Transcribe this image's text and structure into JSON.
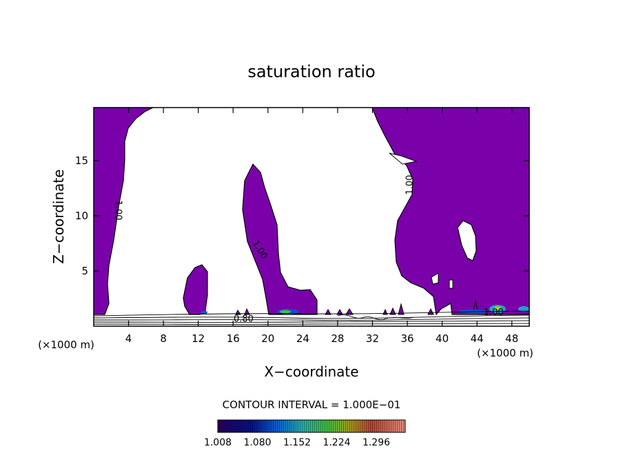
{
  "chart_data": {
    "type": "heatmap",
    "title": "saturation ratio",
    "xlabel": "X−coordinate",
    "ylabel": "Z−coordinate",
    "x_units": "(×1000 m)",
    "z_units": "(×1000 m)",
    "xlim": [
      0,
      50
    ],
    "ylim": [
      0,
      19.8
    ],
    "x_ticks": [
      4,
      8,
      12,
      16,
      20,
      24,
      28,
      32,
      36,
      40,
      44,
      48
    ],
    "y_ticks": [
      5,
      10,
      15
    ],
    "contour_interval_label": "CONTOUR INTERVAL = 1.000E−01",
    "contour_labels": [
      {
        "text": "1.00",
        "x": 2.5,
        "z": 10.5,
        "rotate": 90
      },
      {
        "text": "1.00",
        "x": 18.8,
        "z": 6.8,
        "rotate": 60
      },
      {
        "text": "1.00",
        "x": 36.6,
        "z": 12.8,
        "rotate": -90
      },
      {
        "text": "1.00",
        "x": 45.9,
        "z": 1.0,
        "rotate": 0
      },
      {
        "text": "0.80",
        "x": 17.2,
        "z": 0.4,
        "rotate": 0
      }
    ],
    "colorbar": {
      "tick_labels": [
        "1.008",
        "1.080",
        "1.152",
        "1.224",
        "1.296"
      ],
      "range": [
        1.0,
        1.33
      ]
    },
    "colors": {
      "supersaturated_fill": "#7a00aa",
      "outline": "#000000",
      "background": "#ffffff"
    }
  }
}
